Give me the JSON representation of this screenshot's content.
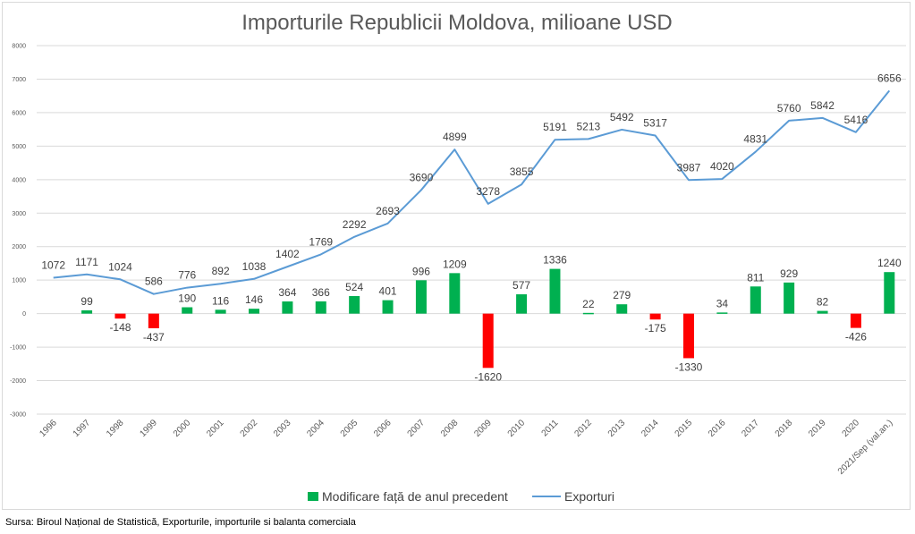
{
  "chart_data": {
    "type": "bar",
    "title": "Importurile Republicii Moldova, milioane USD",
    "xlabel": "",
    "ylabel": "",
    "ylim": [
      -3000,
      8000
    ],
    "yticks": [
      -3000,
      -2000,
      -1000,
      0,
      1000,
      2000,
      3000,
      4000,
      5000,
      6000,
      7000,
      8000
    ],
    "grid": true,
    "legend_position": "bottom",
    "categories": [
      "1996",
      "1997",
      "1998",
      "1999",
      "2000",
      "2001",
      "2002",
      "2003",
      "2004",
      "2005",
      "2006",
      "2007",
      "2008",
      "2009",
      "2010",
      "2011",
      "2012",
      "2013",
      "2014",
      "2015",
      "2016",
      "2017",
      "2018",
      "2019",
      "2020",
      "2021/Sep (val.an.)"
    ],
    "series": [
      {
        "name": "Modificare față de anul precedent",
        "type": "bar",
        "values": [
          null,
          99,
          -148,
          -437,
          190,
          116,
          146,
          364,
          366,
          524,
          401,
          996,
          1209,
          -1620,
          577,
          1336,
          22,
          279,
          -175,
          -1330,
          34,
          811,
          929,
          82,
          -426,
          1240
        ],
        "color_positive": "#00b050",
        "color_negative": "#ff0000"
      },
      {
        "name": "Exporturi",
        "type": "line",
        "values": [
          1072,
          1171,
          1024,
          586,
          776,
          892,
          1038,
          1402,
          1769,
          2292,
          2693,
          3690,
          4899,
          3278,
          3855,
          5191,
          5213,
          5492,
          5317,
          3987,
          4020,
          4831,
          5760,
          5842,
          5416,
          6656
        ],
        "color": "#5b9bd5"
      }
    ]
  },
  "source": "Sursa: Biroul Național de Statistică, Exporturile, importurile si balanta comerciala"
}
